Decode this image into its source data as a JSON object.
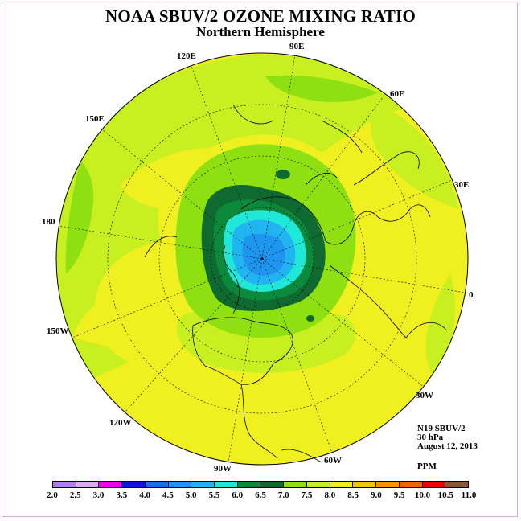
{
  "title": "NOAA SBUV/2 OZONE MIXING RATIO",
  "subtitle": "Northern Hemisphere",
  "longitude_labels": [
    "90E",
    "60E",
    "30E",
    "0",
    "30W",
    "60W",
    "90W",
    "120W",
    "150W",
    "180",
    "150E",
    "120E"
  ],
  "info": {
    "instrument": "N19 SBUV/2",
    "level": "30 hPa",
    "date": "August 12, 2013",
    "units": "PPM"
  },
  "colorbar": {
    "ticks": [
      "2.0",
      "2.5",
      "3.0",
      "3.5",
      "4.0",
      "4.5",
      "5.0",
      "5.5",
      "6.0",
      "6.5",
      "7.0",
      "7.5",
      "8.0",
      "8.5",
      "9.0",
      "9.5",
      "10.0",
      "10.5",
      "11.0"
    ],
    "colors": [
      "#b07ef0",
      "#dcaef0",
      "#f000f0",
      "#1010e0",
      "#1e6ef0",
      "#1e96f0",
      "#20b4f0",
      "#20e8d8",
      "#0a8a3a",
      "#0e6a30",
      "#8ee010",
      "#c8f020",
      "#f0f020",
      "#f0c800",
      "#f09600",
      "#f06400",
      "#f00000",
      "#8a5a3a"
    ]
  }
}
